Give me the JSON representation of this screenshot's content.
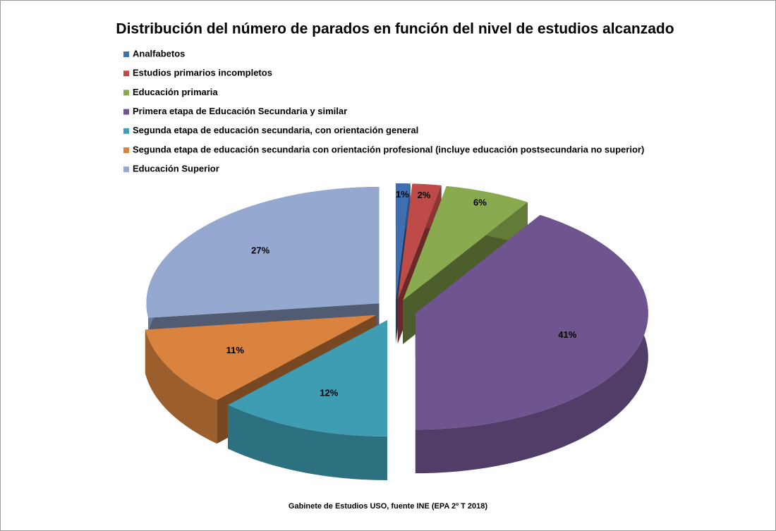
{
  "chart_data": {
    "type": "pie",
    "title": "Distribución del número de parados en función del nivel de estudios alcanzado",
    "categories": [
      "Analfabetos",
      "Estudios primarios incompletos",
      "Educación primaria",
      "Primera etapa de Educación Secundaria y similar",
      "Segunda etapa de educación secundaria, con orientación general",
      "Segunda etapa de educación secundaria con orientación profesional (incluye educación postsecundaria no superior)",
      "Educación Superior"
    ],
    "values": [
      1,
      2,
      6,
      41,
      12,
      11,
      27
    ],
    "value_labels": [
      "1%",
      "2%",
      "6%",
      "41%",
      "12%",
      "11%",
      "27%"
    ],
    "colors": [
      "#3e6fb0",
      "#be4b48",
      "#8aaa4f",
      "#6f5590",
      "#3e9db3",
      "#d9833e",
      "#94a8d0"
    ],
    "legend": "top-left",
    "source": "Gabinete de Estudios USO, fuente INE (EPA 2º T 2018)"
  }
}
